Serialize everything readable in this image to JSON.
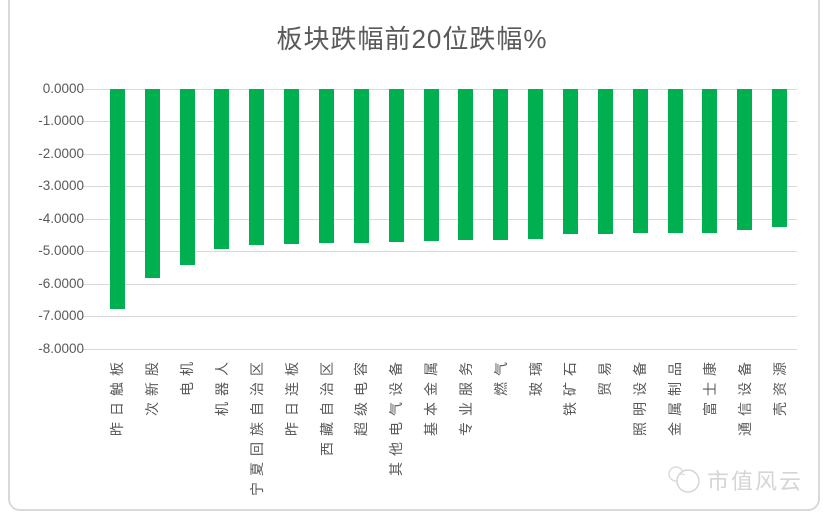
{
  "chart_data": {
    "type": "bar",
    "title": "板块跌幅前20位跌幅%",
    "categories": [
      "昨日触板",
      "次新股",
      "电机",
      "机器人",
      "宁夏回族自治区",
      "昨日连板",
      "西藏自治区",
      "超级电容",
      "其他电气设备",
      "基本金属",
      "专业服务",
      "燃气",
      "玻璃",
      "铁矿石",
      "贸易",
      "照明设备",
      "金属制品",
      "富士康",
      "通信设备",
      "壳资源"
    ],
    "values": [
      -6.78,
      -5.83,
      -5.4,
      -4.92,
      -4.8,
      -4.77,
      -4.75,
      -4.73,
      -4.72,
      -4.69,
      -4.65,
      -4.64,
      -4.62,
      -4.46,
      -4.45,
      -4.44,
      -4.43,
      -4.42,
      -4.34,
      -4.25
    ],
    "xlabel": "",
    "ylabel": "",
    "ylim": [
      -8,
      0
    ],
    "y_ticks": [
      "0.0000",
      "-1.0000",
      "-2.0000",
      "-3.0000",
      "-4.0000",
      "-5.0000",
      "-6.0000",
      "-7.0000",
      "-8.0000"
    ],
    "grid": true,
    "legend": false,
    "bar_color": "#00B050",
    "gridline_color": "#D9D9D9",
    "text_color": "#595959"
  },
  "watermark": {
    "text": "市值风云"
  }
}
